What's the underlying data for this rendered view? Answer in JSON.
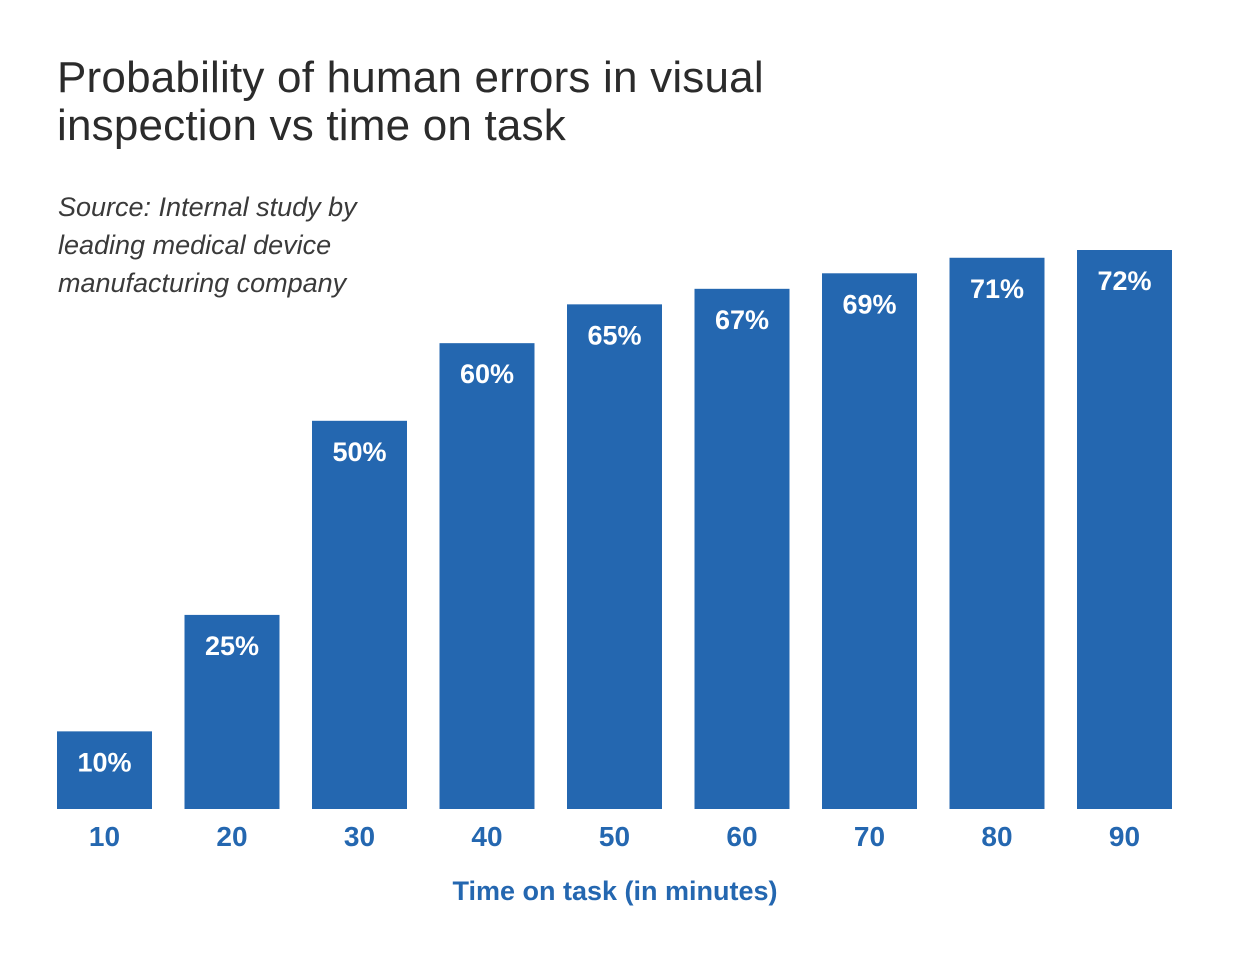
{
  "chart_data": {
    "type": "bar",
    "title": "Probability of human errors in visual inspection vs time on task",
    "subtitle": "Source: Internal study by leading medical device manufacturing company",
    "xlabel": "Time on task (in minutes)",
    "ylabel": "",
    "categories": [
      "10",
      "20",
      "30",
      "40",
      "50",
      "60",
      "70",
      "80",
      "90"
    ],
    "values": [
      10,
      25,
      50,
      60,
      65,
      67,
      69,
      71,
      72
    ],
    "data_labels": [
      "10%",
      "25%",
      "50%",
      "60%",
      "65%",
      "67%",
      "69%",
      "71%",
      "72%"
    ],
    "unit": "%",
    "ylim": [
      0,
      72
    ],
    "grid": false,
    "legend": "none",
    "colors": {
      "bar": "#2467b0",
      "bar_label": "#ffffff",
      "axis_text": "#2467b0",
      "title": "#2b2b2b",
      "subtitle": "#3a3a3a"
    }
  }
}
